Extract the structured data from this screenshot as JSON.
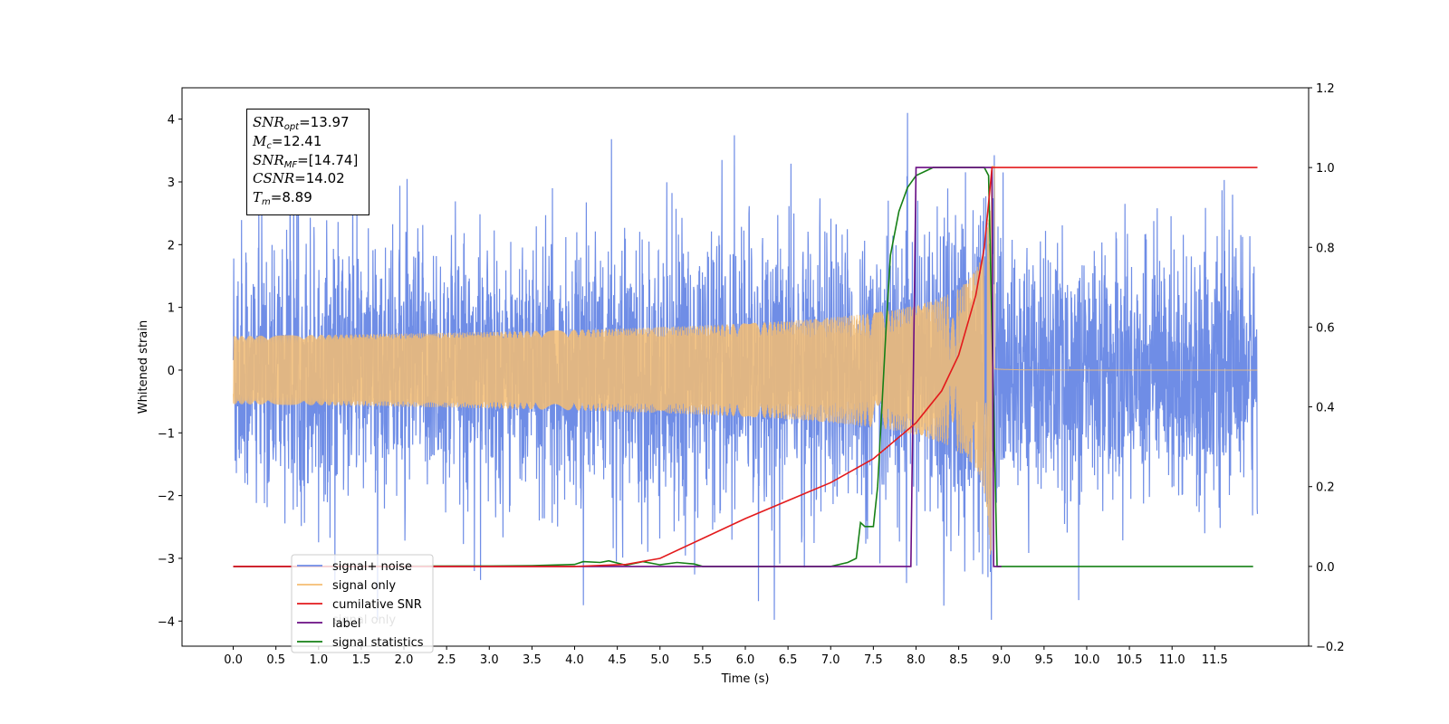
{
  "chart_data": {
    "type": "line",
    "title": "",
    "xlabel": "Time (s)",
    "ylabel": "Whitened strain",
    "y2label": "",
    "xlim": [
      -0.6,
      12.6
    ],
    "ylim": [
      -4.4,
      4.5
    ],
    "y2lim": [
      -0.2,
      1.2
    ],
    "xticks": [
      "0.0",
      "0.5",
      "1.0",
      "1.5",
      "2.0",
      "2.5",
      "3.0",
      "3.5",
      "4.0",
      "4.5",
      "5.0",
      "5.5",
      "6.0",
      "6.5",
      "7.0",
      "7.5",
      "8.0",
      "8.5",
      "9.0",
      "9.5",
      "10.0",
      "10.5",
      "11.0",
      "11.5"
    ],
    "yticks": [
      -4,
      -3,
      -2,
      -1,
      0,
      1,
      2,
      3,
      4
    ],
    "y2ticks": [
      "−0.2",
      "0.0",
      "0.2",
      "0.4",
      "0.6",
      "0.8",
      "1.0",
      "1.2"
    ],
    "y2tick_values": [
      -0.2,
      0.0,
      0.2,
      0.4,
      0.6,
      0.8,
      1.0,
      1.2
    ],
    "grid": false,
    "legend_position": "lower-left",
    "series": [
      {
        "name": "signal+ noise",
        "axis": "left",
        "color": "#6f8de6",
        "description_values": {
          "time_range": [
            0.0,
            12.0
          ],
          "typical_amplitude": 1.6,
          "min": -4.0,
          "max": 4.1
        }
      },
      {
        "name": "signal only",
        "axis": "left",
        "color": "#f5bd72",
        "chirp": {
          "t_start": 0.0,
          "t_merger": 8.89,
          "t_end": 12.0,
          "peak_amplitude": 3.25
        }
      },
      {
        "name": "cumilative SNR",
        "axis": "right",
        "color": "#e31a1c",
        "x": [
          0.0,
          4.0,
          4.6,
          5.0,
          5.5,
          6.0,
          6.5,
          7.0,
          7.5,
          8.0,
          8.3,
          8.5,
          8.7,
          8.8,
          8.89,
          9.0,
          12.0
        ],
        "y": [
          0.0,
          0.0,
          0.005,
          0.02,
          0.07,
          0.12,
          0.165,
          0.21,
          0.27,
          0.36,
          0.44,
          0.53,
          0.68,
          0.8,
          1.0,
          1.0,
          1.0
        ]
      },
      {
        "name": "label",
        "axis": "right",
        "color": "#6a0d83",
        "x": [
          0.0,
          7.94,
          8.0,
          8.89,
          8.91,
          9.0
        ],
        "y": [
          0.0,
          0.0,
          1.0,
          1.0,
          0.0,
          0.0
        ]
      },
      {
        "name": "signal statistics",
        "axis": "right",
        "color": "#168016",
        "x": [
          0.0,
          3.0,
          3.5,
          4.0,
          4.1,
          4.3,
          4.4,
          4.6,
          4.8,
          5.0,
          5.2,
          5.4,
          5.5,
          6.0,
          7.0,
          7.2,
          7.3,
          7.35,
          7.4,
          7.5,
          7.55,
          7.6,
          7.65,
          7.7,
          7.8,
          7.9,
          8.0,
          8.2,
          8.5,
          8.8,
          8.85,
          8.9,
          8.95,
          9.0,
          11.95
        ],
        "y": [
          0.0,
          0.001,
          0.002,
          0.005,
          0.012,
          0.01,
          0.014,
          0.003,
          0.012,
          0.004,
          0.01,
          0.006,
          0.0,
          0.0,
          0.0,
          0.01,
          0.02,
          0.11,
          0.1,
          0.1,
          0.2,
          0.4,
          0.6,
          0.78,
          0.89,
          0.95,
          0.98,
          1.0,
          1.0,
          1.0,
          0.98,
          0.5,
          0.0,
          0.0,
          0.0
        ]
      }
    ],
    "legend": [
      "signal+ noise",
      "signal only",
      "cumilative SNR",
      "label",
      "signal statistics"
    ],
    "annotation_box": [
      {
        "sym": "SNR",
        "sub": "opt",
        "value": "=13.97"
      },
      {
        "sym": "M",
        "sub": "c",
        "value": "=12.41"
      },
      {
        "sym": "SNR",
        "sub": "MF",
        "value": "=[14.74]"
      },
      {
        "sym": "CSNR",
        "sub": "",
        "value": "=14.02"
      },
      {
        "sym": "T",
        "sub": "m",
        "value": "=8.89"
      }
    ],
    "background_legend_ghost": "signal only"
  }
}
